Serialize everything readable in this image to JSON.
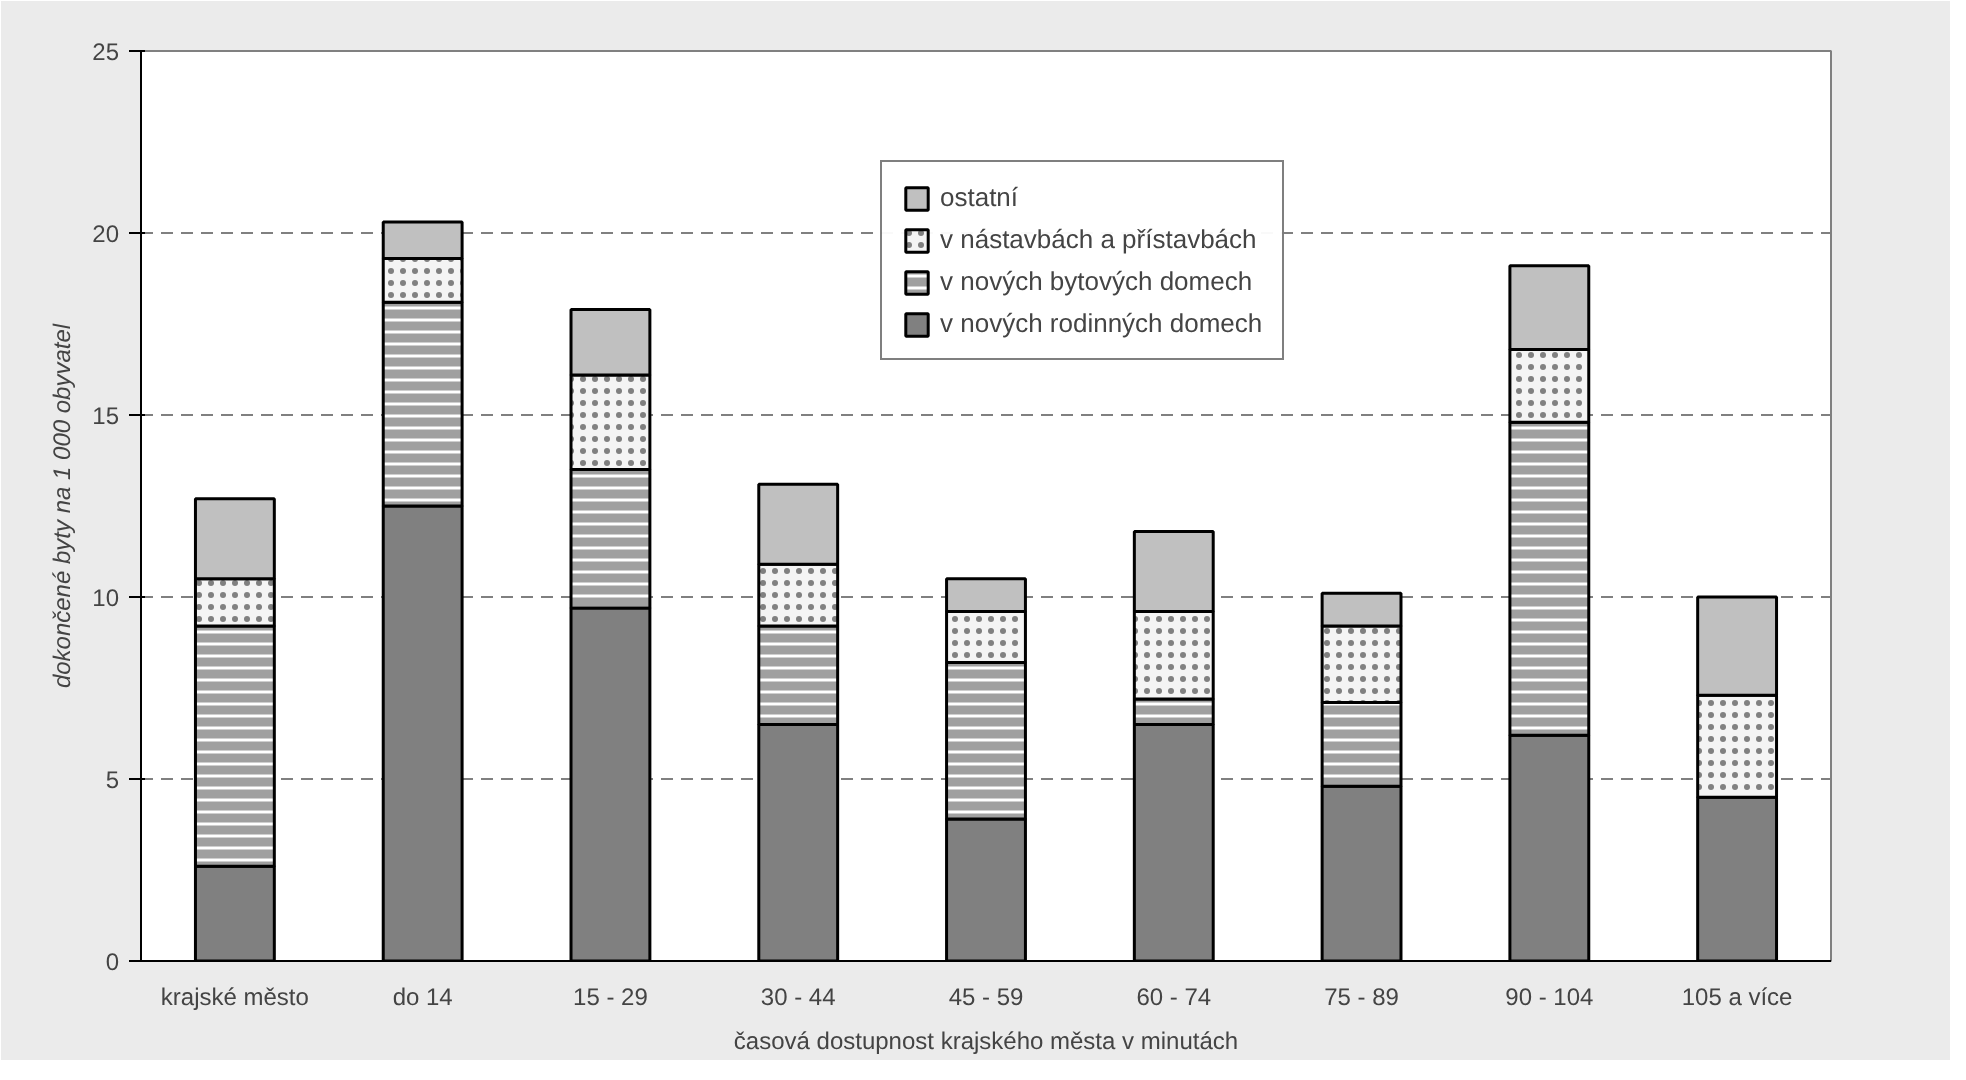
{
  "chart_data": {
    "type": "bar",
    "stacked": true,
    "xlabel": "časová dostupnost krajského města v minutách",
    "ylabel": "dokončené byty na 1 000 obyvatel",
    "categories": [
      "krajské město",
      "do 14",
      "15 - 29",
      "30 - 44",
      "45 - 59",
      "60 - 74",
      "75 - 89",
      "90 - 104",
      "105 a více"
    ],
    "series": [
      {
        "name": "v nových rodinných domech",
        "color": "#808080",
        "values": [
          2.6,
          12.5,
          9.7,
          6.5,
          3.9,
          6.5,
          4.8,
          6.2,
          4.5
        ]
      },
      {
        "name": "v nových bytových domech",
        "color": "#a0a0a0",
        "values": [
          6.6,
          5.6,
          3.8,
          2.7,
          4.3,
          0.7,
          2.3,
          8.6,
          0
        ]
      },
      {
        "name": "v nástavbách a přístavbách",
        "color": "#f4f4f4",
        "values": [
          1.3,
          1.2,
          2.6,
          1.7,
          1.4,
          2.4,
          2.1,
          2.0,
          2.8
        ]
      },
      {
        "name": "ostatní",
        "color": "#c0c0c0",
        "values": [
          2.2,
          1.0,
          1.8,
          2.2,
          0.9,
          2.2,
          0.9,
          2.3,
          2.7
        ]
      }
    ],
    "ylim": [
      0,
      25
    ],
    "yticks": [
      0,
      5,
      10,
      15,
      20,
      25
    ],
    "grid": "y",
    "legend": "top"
  }
}
